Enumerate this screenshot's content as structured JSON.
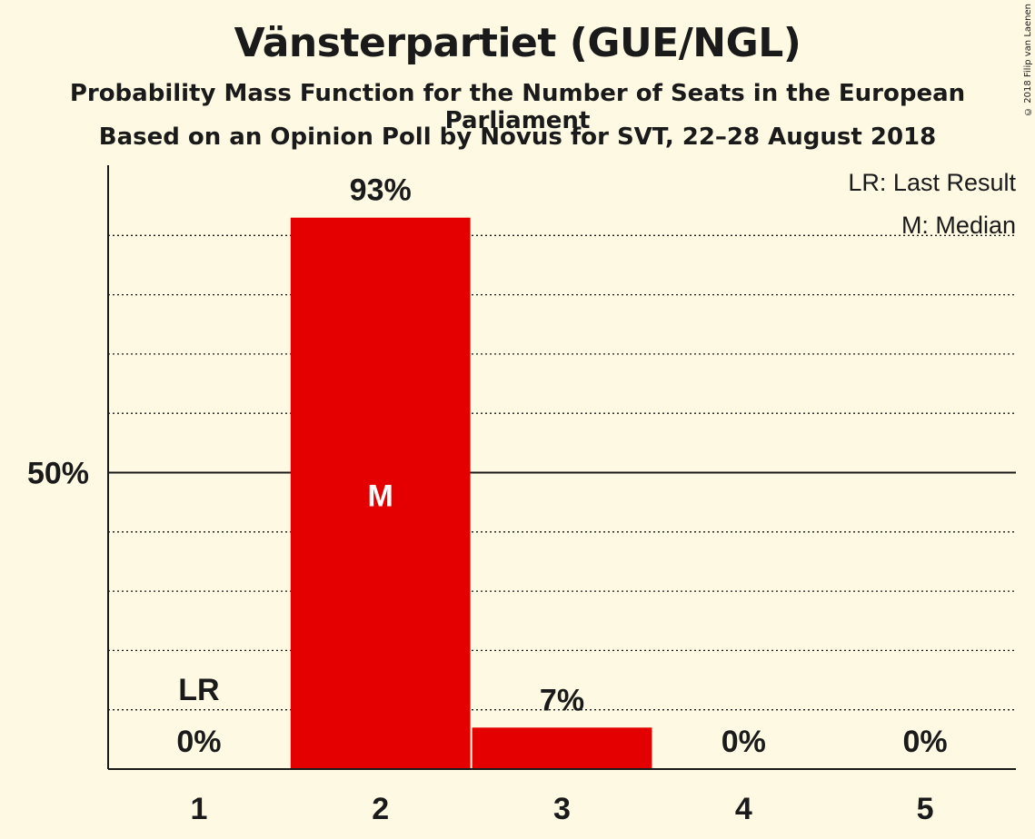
{
  "header": {
    "title": "Vänsterpartiet (GUE/NGL)",
    "subtitle": "Probability Mass Function for the Number of Seats in the European Parliament",
    "source": "Based on an Opinion Poll by Novus for SVT, 22–28 August 2018",
    "copyright": "© 2018 Filip van Laenen"
  },
  "legend": {
    "last_result": "LR: Last Result",
    "median": "M: Median"
  },
  "colors": {
    "background": "#fef9e3",
    "bar": "#e50000",
    "text": "#1a1a1a"
  },
  "chart_data": {
    "type": "bar",
    "categories": [
      "1",
      "2",
      "3",
      "4",
      "5"
    ],
    "values": [
      0,
      93,
      7,
      0,
      0
    ],
    "value_labels": [
      "0%",
      "93%",
      "7%",
      "0%",
      "0%"
    ],
    "title": "Vänsterpartiet (GUE/NGL)",
    "xlabel": "",
    "ylabel": "",
    "ylim": [
      0,
      100
    ],
    "y_tick_label": "50%",
    "y_tick_value": 50,
    "minor_gridlines": [
      10,
      20,
      30,
      40,
      60,
      70,
      80,
      90
    ],
    "last_result_category": "1",
    "last_result_marker": "LR",
    "median_category": "2",
    "median_marker": "M",
    "legend_placement": "top-right"
  }
}
